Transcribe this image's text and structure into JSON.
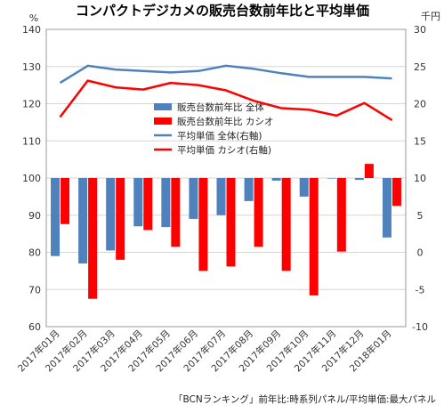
{
  "chart_data": {
    "type": "bar+line",
    "title": "コンパクトデジカメの販売台数前年比と平均単価",
    "left_unit": "%",
    "right_unit": "千円",
    "categories": [
      "2017年01月",
      "2017年02月",
      "2017年03月",
      "2017年04月",
      "2017年05月",
      "2017年06月",
      "2017年07月",
      "2017年08月",
      "2017年09月",
      "2017年10月",
      "2017年11月",
      "2017年12月",
      "2018年01月"
    ],
    "bar_baseline": 100,
    "left_axis": {
      "min": 60,
      "max": 140,
      "step": 10,
      "ticks": [
        "60",
        "70",
        "80",
        "90",
        "100",
        "110",
        "120",
        "130",
        "140"
      ]
    },
    "right_axis": {
      "min": -10,
      "max": 30,
      "step": 5,
      "ticks": [
        "-10",
        "-5",
        "0",
        "5",
        "10",
        "15",
        "20",
        "25",
        "30"
      ]
    },
    "bar_series": [
      {
        "name": "販売台数前年比 全体",
        "color": "#4f81bd",
        "values": [
          79,
          77,
          80.5,
          87,
          86.8,
          89,
          90,
          93.8,
          99.3,
          95,
          100,
          99.5,
          84
        ]
      },
      {
        "name": "販売台数前年比 カシオ",
        "color": "#ff0000",
        "values": [
          87.6,
          67.5,
          78,
          86,
          81.5,
          75,
          76.2,
          81.5,
          75,
          68.4,
          80.2,
          103.8,
          92.5
        ]
      }
    ],
    "line_series": [
      {
        "name": "平均単価 全体(右軸)",
        "color": "#4f81bd",
        "values": [
          22.8,
          25.1,
          24.6,
          24.4,
          24.2,
          24.4,
          25.1,
          24.7,
          24.1,
          23.6,
          23.6,
          23.6,
          23.4
        ]
      },
      {
        "name": "平均単価 カシオ(右軸)",
        "color": "#ff0000",
        "values": [
          18.2,
          23.1,
          22.2,
          21.9,
          22.8,
          22.5,
          21.8,
          20.4,
          19.4,
          19.2,
          18.4,
          20.1,
          17.8
        ]
      }
    ],
    "grid": true,
    "legend_position": "center-inside"
  },
  "source_note": "「BCNランキング」前年比:時系列パネル/平均単価:最大パネル"
}
